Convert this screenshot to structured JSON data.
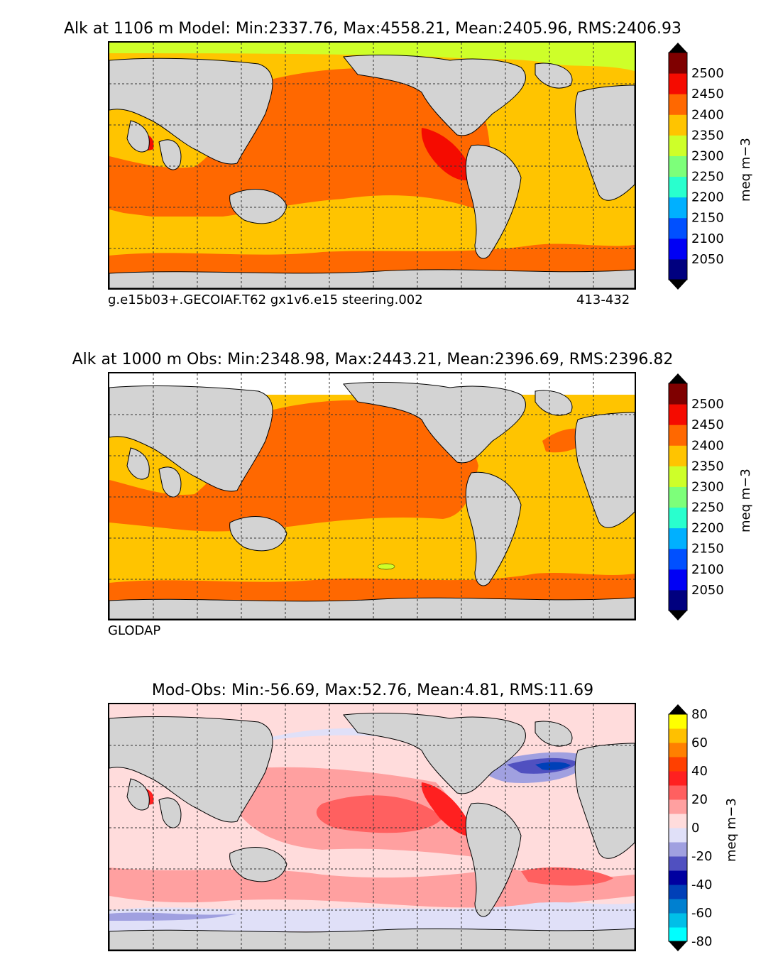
{
  "panels": [
    {
      "title": "Alk at 1106 m Model: Min:2337.76, Max:4558.21, Mean:2405.96, RMS:2406.93",
      "caption_left": "g.e15b03+.GECOIAF.T62 gx1v6.e15 steering.002",
      "caption_right": "413-432",
      "units": "meq m−3",
      "colorbar": {
        "colors": [
          "#00007f",
          "#0000f5",
          "#0050ff",
          "#00b0ff",
          "#29ffce",
          "#7dff7a",
          "#ceff29",
          "#ffc400",
          "#ff6800",
          "#f50b00",
          "#7f0000"
        ],
        "tick_labels": [
          "2050",
          "2100",
          "2150",
          "2200",
          "2250",
          "2300",
          "2350",
          "2400",
          "2450",
          "2500"
        ]
      }
    },
    {
      "title": "Alk at 1000 m Obs: Min:2348.98, Max:2443.21, Mean:2396.69, RMS:2396.82",
      "caption_left": "GLODAP",
      "caption_right": "",
      "units": "meq m−3",
      "colorbar": {
        "colors": [
          "#00007f",
          "#0000f5",
          "#0050ff",
          "#00b0ff",
          "#29ffce",
          "#7dff7a",
          "#ceff29",
          "#ffc400",
          "#ff6800",
          "#f50b00",
          "#7f0000"
        ],
        "tick_labels": [
          "2050",
          "2100",
          "2150",
          "2200",
          "2250",
          "2300",
          "2350",
          "2400",
          "2450",
          "2500"
        ]
      }
    },
    {
      "title": "Mod-Obs: Min:-56.69, Max:52.76, Mean:4.81, RMS:11.69",
      "caption_left": "",
      "caption_right": "",
      "units": "meq m−3",
      "colorbar": {
        "colors": [
          "#00ffff",
          "#00bfe8",
          "#0080d0",
          "#0040b8",
          "#0000a0",
          "#5050c0",
          "#a0a0e0",
          "#e0e0f8",
          "#ffdcdc",
          "#ffa0a0",
          "#ff6060",
          "#ff2020",
          "#ff4000",
          "#ff8000",
          "#ffc000",
          "#ffff00"
        ],
        "tick_labels": [
          "-80",
          "-60",
          "-40",
          "-20",
          "0",
          "20",
          "40",
          "60",
          "80"
        ]
      }
    }
  ],
  "colors": {
    "land": "#d3d3d3",
    "missing": "#ffffff",
    "grid": "#333333"
  }
}
